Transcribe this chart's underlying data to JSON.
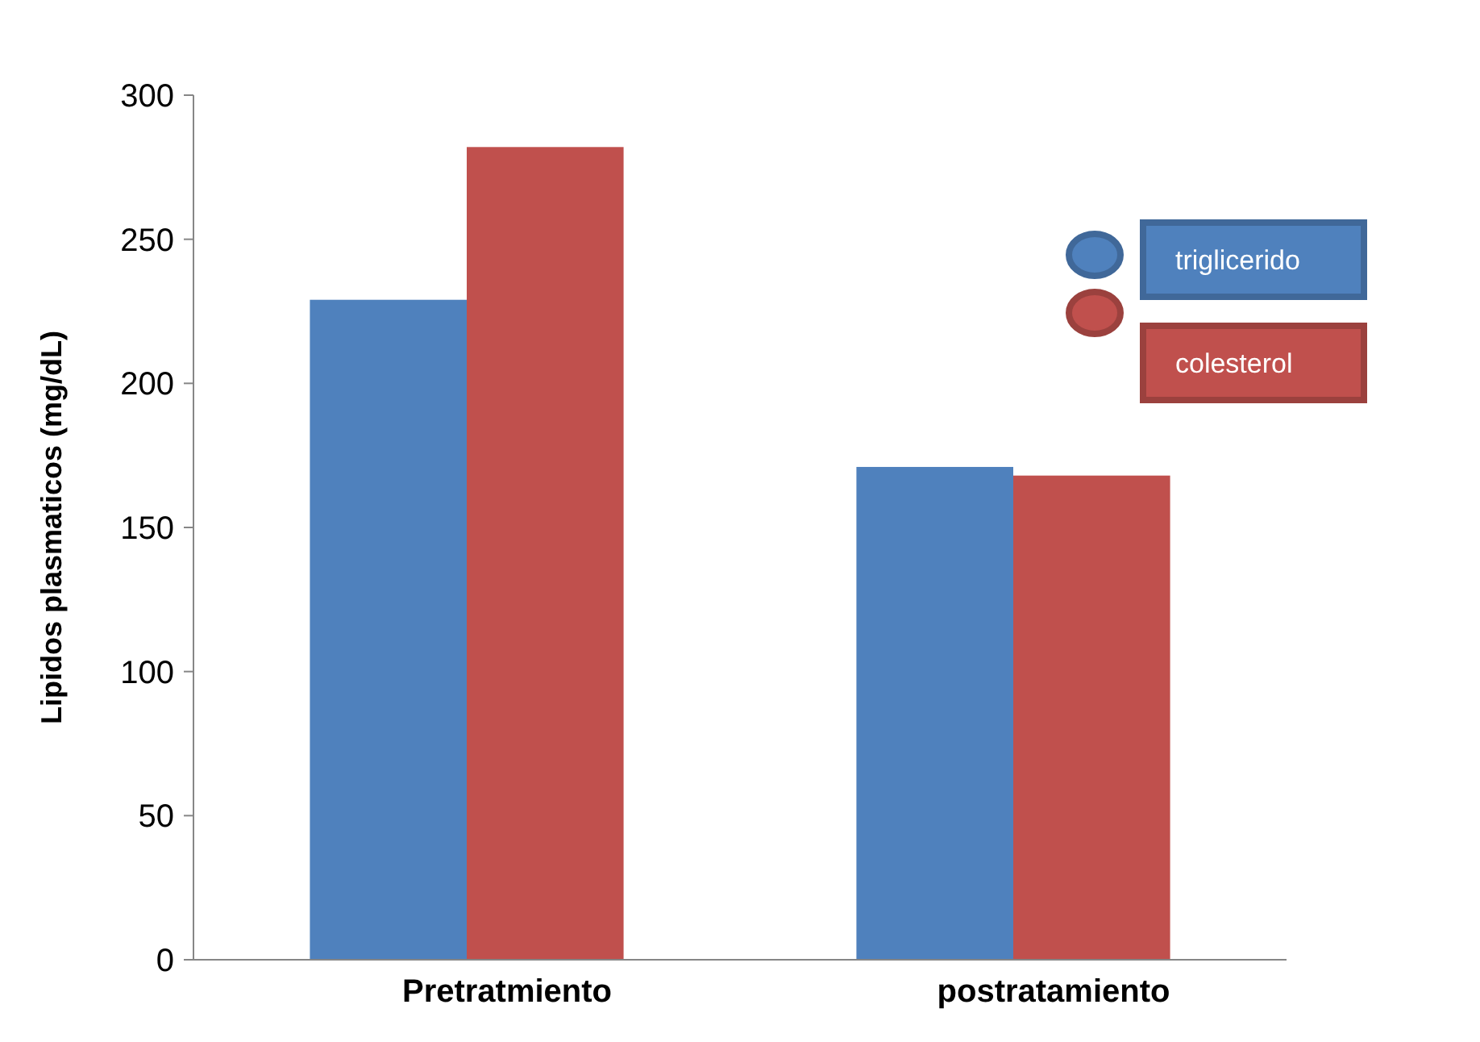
{
  "chart_data": {
    "type": "bar",
    "ylabel": "Lipidos plasmaticos (mg/dL)",
    "categories": [
      "Pretratmiento",
      "postratamiento"
    ],
    "series": [
      {
        "name": "triglicerido",
        "color": "#4f81bd",
        "values": [
          229,
          171
        ]
      },
      {
        "name": "colesterol",
        "color": "#c0504d",
        "values": [
          282,
          168
        ]
      }
    ],
    "ylim": [
      0,
      300
    ],
    "yticks": [
      0,
      50,
      100,
      150,
      200,
      250,
      300
    ],
    "grid": false,
    "legend": "top right"
  }
}
